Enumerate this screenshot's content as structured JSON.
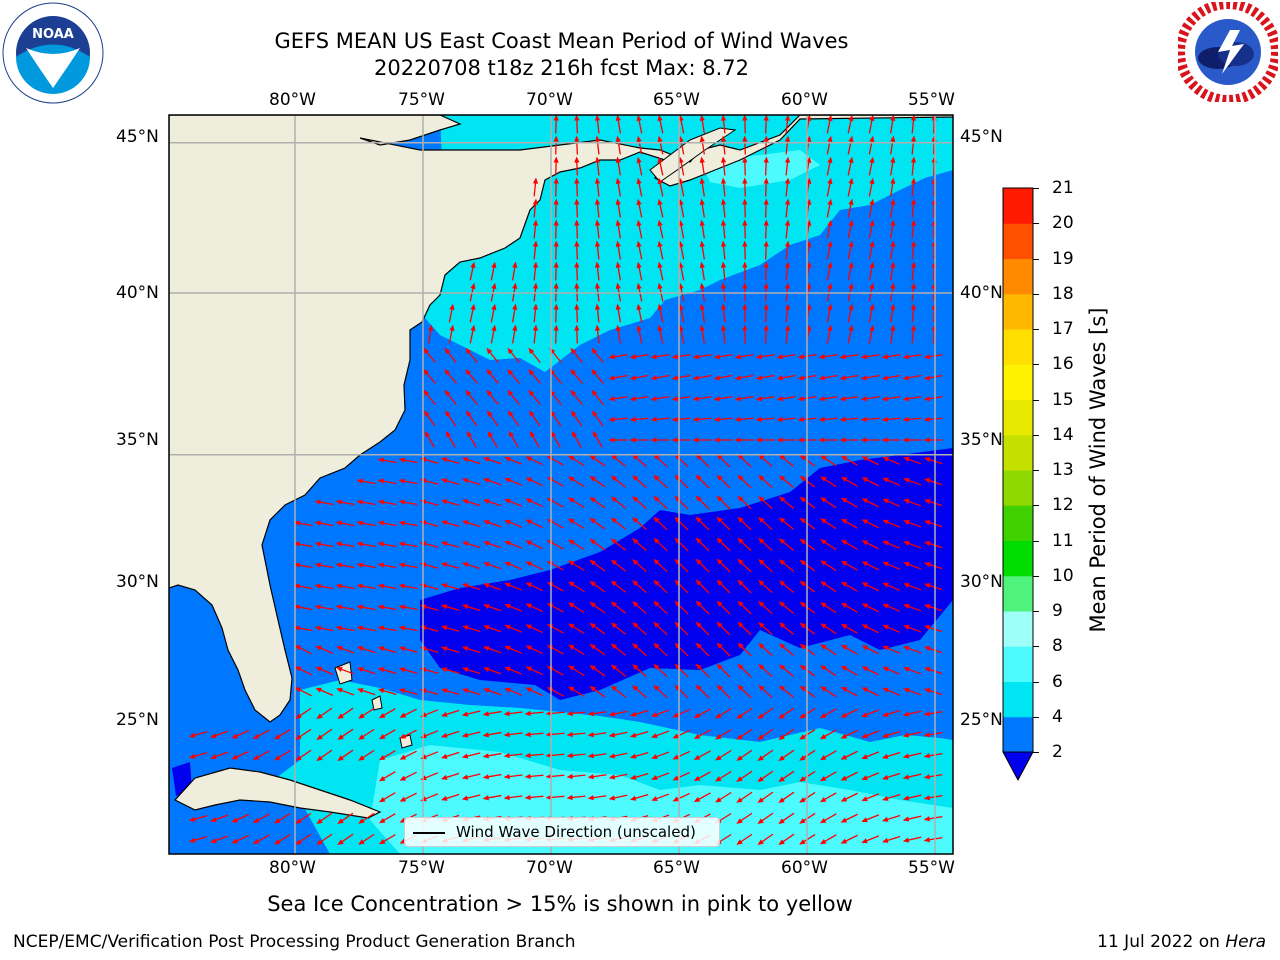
{
  "title": {
    "line1": "GEFS MEAN US East Coast Mean Period of Wind Waves",
    "line2": "20220708 t18z 216h fcst   Max: 8.72"
  },
  "logos": {
    "noaa": {
      "text": "NOAA",
      "ring_text": "NATIONAL OCEANIC AND ATMOSPHERIC ADMINISTRATION",
      "icon": "noaa-logo"
    },
    "nws": {
      "ring_text": "NATIONAL WEATHER SERVICE",
      "icon": "nws-logo"
    }
  },
  "axes": {
    "lon_labels": [
      "80°W",
      "75°W",
      "70°W",
      "65°W",
      "60°W",
      "55°W"
    ],
    "lat_labels": [
      "45°N",
      "40°N",
      "35°N",
      "30°N",
      "25°N"
    ]
  },
  "map": {
    "lon_range": [
      -85,
      -54.3
    ],
    "lat_range": [
      20.5,
      46
    ],
    "colors": {
      "land": "#efeedc",
      "c2_4": "#0077ff",
      "c4_6": "#00e5f2",
      "c6_8": "#4dfbff",
      "below_2": "#0000ee",
      "arrow": "#ff0000",
      "grid": "#b0b0b0"
    }
  },
  "colorbar": {
    "label": "Mean Period of Wind Waves [s]",
    "ticks": [
      "2",
      "4",
      "6",
      "8",
      "9",
      "10",
      "11",
      "12",
      "13",
      "14",
      "15",
      "16",
      "17",
      "18",
      "19",
      "20",
      "21"
    ],
    "colors": [
      "#0077ff",
      "#00e5f2",
      "#4dfbff",
      "#9ffff9",
      "#4ff27a",
      "#00dc00",
      "#3fd200",
      "#8fd800",
      "#c5e000",
      "#e7ea00",
      "#fff200",
      "#ffde00",
      "#ffb700",
      "#ff8a00",
      "#ff5000",
      "#ff1a00"
    ],
    "extend_color": "#0000ee"
  },
  "legend": {
    "label": "Wind Wave Direction (unscaled)"
  },
  "subnote": "Sea Ice Concentration > 15% is shown in pink to yellow",
  "footer": {
    "left": "NCEP/EMC/Verification Post Processing Product Generation Branch",
    "right_date": "11 Jul 2022 on ",
    "right_host": "Hera"
  }
}
